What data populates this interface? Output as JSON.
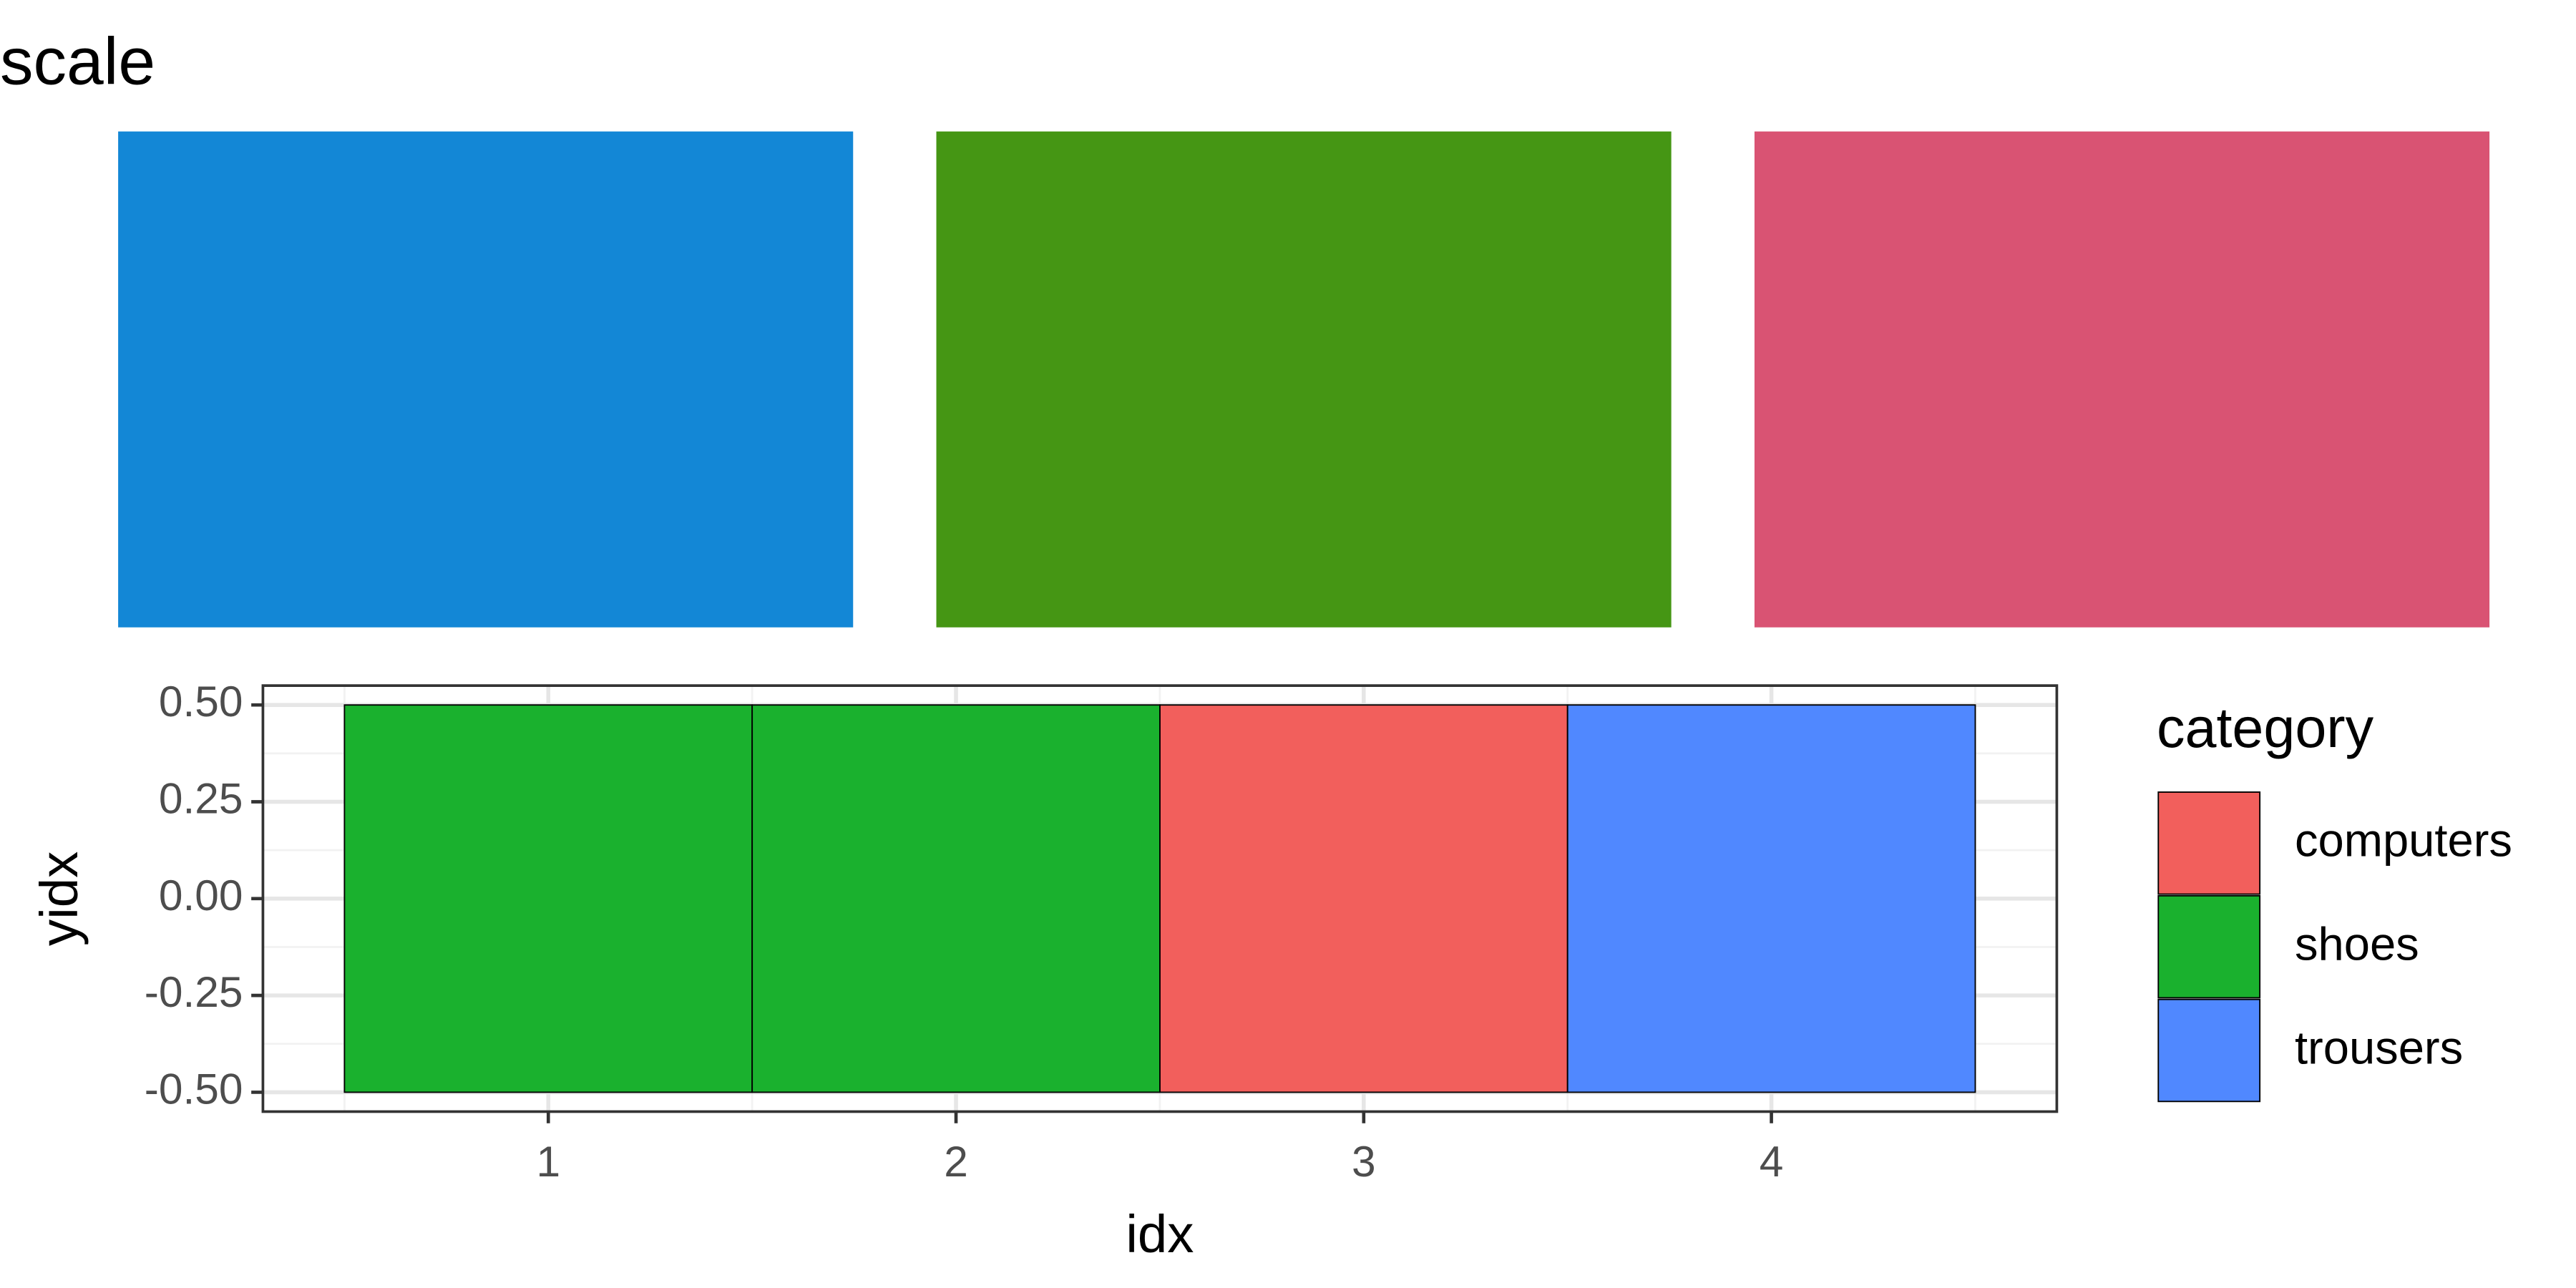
{
  "chart_data": [
    {
      "type": "swatch",
      "title": "scale",
      "colors": [
        "#1387d6",
        "#459614",
        "#d95373"
      ]
    },
    {
      "type": "tile",
      "xlabel": "idx",
      "ylabel": "yidx",
      "legend_title": "category",
      "series": [
        {
          "name": "computers",
          "color": "#f25f5c",
          "x": [
            3
          ],
          "values": [
            0
          ]
        },
        {
          "name": "shoes",
          "color": "#1ab12e",
          "x": [
            1,
            2
          ],
          "values": [
            0,
            0
          ]
        },
        {
          "name": "trousers",
          "color": "#5088ff",
          "x": [
            4
          ],
          "values": [
            0
          ]
        }
      ],
      "xlim": [
        0.3,
        4.7
      ],
      "ylim": [
        -0.55,
        0.55
      ],
      "xticks": [
        1,
        2,
        3,
        4
      ],
      "yticks": [
        {
          "value": -0.5,
          "label": "-0.50"
        },
        {
          "value": -0.25,
          "label": "-0.25"
        },
        {
          "value": 0,
          "label": "0.00"
        },
        {
          "value": 0.25,
          "label": "0.25"
        },
        {
          "value": 0.5,
          "label": "0.50"
        }
      ],
      "xminorticks": [
        0.5,
        1.5,
        2.5,
        3.5,
        4.5
      ],
      "yminorticks": [
        -0.375,
        -0.125,
        0.125,
        0.375
      ],
      "grid": true,
      "legend": "right"
    }
  ]
}
